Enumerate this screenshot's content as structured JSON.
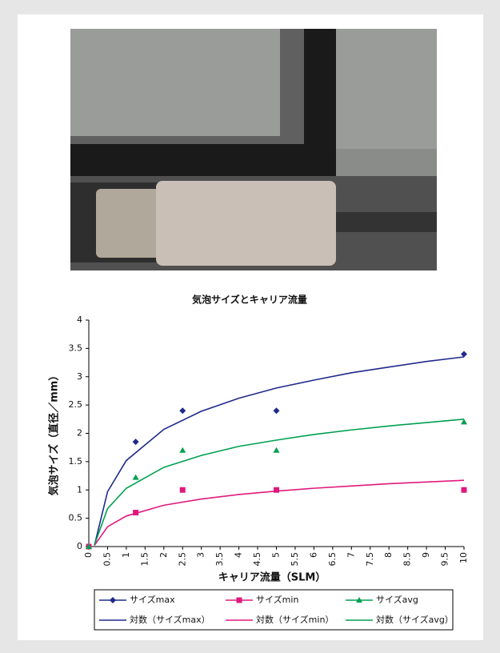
{
  "chart_data": {
    "type": "scatter",
    "title": "気泡サイズとキャリア流量",
    "x_label": "キャリア流量（SLM）",
    "y_label": "気泡サイズ（直径／mm）",
    "xlim": [
      0,
      10
    ],
    "ylim": [
      0,
      4
    ],
    "xticks": [
      0,
      0.5,
      1,
      1.5,
      2,
      2.5,
      3,
      3.5,
      4,
      4.5,
      5,
      5.5,
      6,
      6.5,
      7,
      7.5,
      8,
      8.5,
      9,
      9.5,
      10
    ],
    "yticks": [
      0,
      0.5,
      1,
      1.5,
      2,
      2.5,
      3,
      3.5,
      4
    ],
    "grid": false,
    "legend": "bottom",
    "series": [
      {
        "name": "サイズmax",
        "color": "#1f2a8c",
        "style": "markers",
        "marker": "diamond",
        "x": [
          0,
          1.25,
          2.5,
          5,
          10
        ],
        "values": [
          0,
          1.85,
          2.4,
          2.4,
          3.4
        ]
      },
      {
        "name": "サイズmin",
        "color": "#e0197d",
        "style": "markers",
        "marker": "square",
        "x": [
          0,
          1.25,
          2.5,
          5,
          10
        ],
        "values": [
          0,
          0.6,
          1.0,
          1.0,
          1.0
        ]
      },
      {
        "name": "サイズavg",
        "color": "#00a050",
        "style": "markers",
        "marker": "triangle",
        "x": [
          0,
          1.25,
          2.5,
          5,
          10
        ],
        "values": [
          0,
          1.22,
          1.7,
          1.7,
          2.2
        ]
      },
      {
        "name": "対数（サイズmax）",
        "color": "#1f2a8c",
        "style": "line",
        "x": [
          0.15,
          0.5,
          1,
          2,
          3,
          4,
          5,
          6,
          7,
          8,
          9,
          10
        ],
        "values": [
          0.02,
          0.97,
          1.52,
          2.07,
          2.39,
          2.62,
          2.8,
          2.94,
          3.07,
          3.17,
          3.27,
          3.35
        ]
      },
      {
        "name": "対数（サイズmin）",
        "color": "#e0197d",
        "style": "line",
        "x": [
          0.15,
          0.5,
          1,
          2,
          3,
          4,
          5,
          6,
          7,
          8,
          9,
          10
        ],
        "values": [
          0.02,
          0.35,
          0.54,
          0.73,
          0.84,
          0.92,
          0.98,
          1.03,
          1.07,
          1.11,
          1.14,
          1.17
        ]
      },
      {
        "name": "対数（サイズavg）",
        "color": "#00a050",
        "style": "line",
        "x": [
          0.15,
          0.5,
          1,
          2,
          3,
          4,
          5,
          6,
          7,
          8,
          9,
          10
        ],
        "values": [
          0.03,
          0.67,
          1.03,
          1.4,
          1.61,
          1.77,
          1.88,
          1.98,
          2.06,
          2.13,
          2.19,
          2.25
        ]
      }
    ]
  }
}
